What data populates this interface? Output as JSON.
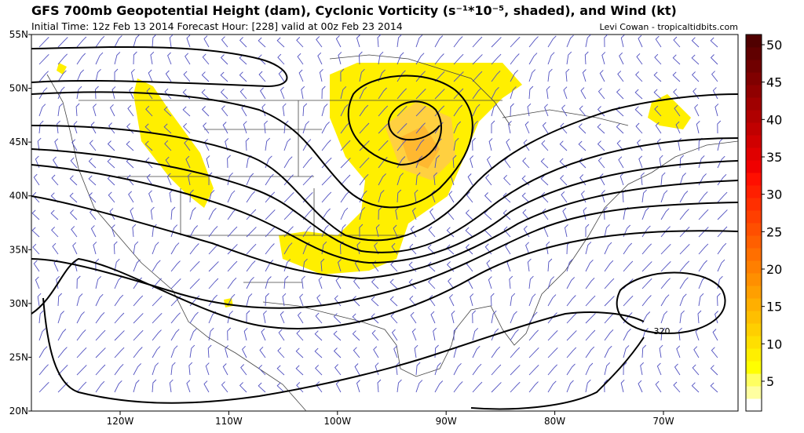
{
  "header": {
    "title": "GFS 700mb Geopotential Height (dam), Cyclonic Vorticity (s⁻¹*10⁻⁵, shaded), and Wind (kt)",
    "subtitle": "Initial Time: 12z Feb 13 2014 Forecast Hour: [228] valid at 00z Feb 23 2014",
    "credit": "Levi Cowan - tropicaltidbits.com"
  },
  "map": {
    "latitude_labels": [
      "55N",
      "50N",
      "45N",
      "40N",
      "35N",
      "30N",
      "25N",
      "20N"
    ],
    "longitude_labels": [
      "120W",
      "110W",
      "100W",
      "90W",
      "80W",
      "70W"
    ],
    "contour_label": "320"
  },
  "colorbar": {
    "ticks": [
      50,
      45,
      40,
      35,
      30,
      25,
      20,
      15,
      10,
      5
    ]
  }
}
